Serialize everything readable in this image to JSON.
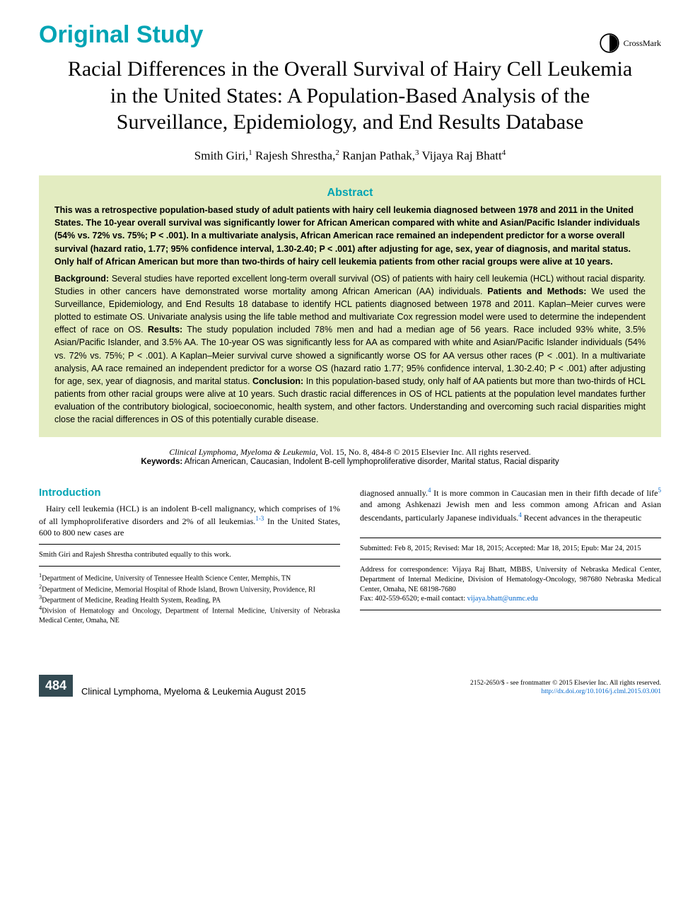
{
  "header": {
    "section_type": "Original Study",
    "crossmark_label": "CrossMark"
  },
  "article": {
    "title": "Racial Differences in the Overall Survival of Hairy Cell Leukemia in the United States: A Population-Based Analysis of the Surveillance, Epidemiology, and End Results Database",
    "authors_html": "Smith Giri,<sup>1</sup> Rajesh Shrestha,<sup>2</sup> Ranjan Pathak,<sup>3</sup> Vijaya Raj Bhatt<sup>4</sup>"
  },
  "abstract": {
    "heading": "Abstract",
    "bold_summary": "This was a retrospective population-based study of adult patients with hairy cell leukemia diagnosed between 1978 and 2011 in the United States. The 10-year overall survival was significantly lower for African American compared with white and Asian/Pacific Islander individuals (54% vs. 72% vs. 75%; P < .001). In a multivariate analysis, African American race remained an independent predictor for a worse overall survival (hazard ratio, 1.77; 95% confidence interval, 1.30-2.40; P < .001) after adjusting for age, sex, year of diagnosis, and marital status. Only half of African American but more than two-thirds of hairy cell leukemia patients from other racial groups were alive at 10 years.",
    "structured": [
      {
        "label": "Background:",
        "text": " Several studies have reported excellent long-term overall survival (OS) of patients with hairy cell leukemia (HCL) without racial disparity. Studies in other cancers have demonstrated worse mortality among African American (AA) individuals. "
      },
      {
        "label": "Patients and Methods:",
        "text": " We used the Surveillance, Epidemiology, and End Results 18 database to identify HCL patients diagnosed between 1978 and 2011. Kaplan–Meier curves were plotted to estimate OS. Univariate analysis using the life table method and multivariate Cox regression model were used to determine the independent effect of race on OS. "
      },
      {
        "label": "Results:",
        "text": " The study population included 78% men and had a median age of 56 years. Race included 93% white, 3.5% Asian/Pacific Islander, and 3.5% AA. The 10-year OS was significantly less for AA as compared with white and Asian/Pacific Islander individuals (54% vs. 72% vs. 75%; P < .001). A Kaplan–Meier survival curve showed a significantly worse OS for AA versus other races (P < .001). In a multivariate analysis, AA race remained an independent predictor for a worse OS (hazard ratio 1.77; 95% confidence interval, 1.30-2.40; P < .001) after adjusting for age, sex, year of diagnosis, and marital status. "
      },
      {
        "label": "Conclusion:",
        "text": " In this population-based study, only half of AA patients but more than two-thirds of HCL patients from other racial groups were alive at 10 years. Such drastic racial differences in OS of HCL patients at the population level mandates further evaluation of the contributory biological, socioeconomic, health system, and other factors. Understanding and overcoming such racial disparities might close the racial differences in OS of this potentially curable disease."
      }
    ]
  },
  "citation": {
    "journal": "Clinical Lymphoma, Myeloma & Leukemia,",
    "rest": " Vol. 15, No. 8, 484-8 © 2015 Elsevier Inc. All rights reserved.",
    "keywords_label": "Keywords:",
    "keywords": " African American, Caucasian, Indolent B-cell lymphoproliferative disorder, Marital status, Racial disparity"
  },
  "body": {
    "intro_heading": "Introduction",
    "col_left": "Hairy cell leukemia (HCL) is an indolent B-cell malignancy, which comprises of 1% of all lymphoproliferative disorders and 2% of all leukemias.<sup class='ref'>1-3</sup> In the United States, 600 to 800 new cases are",
    "col_right": "diagnosed annually.<sup class='ref'>4</sup> It is more common in Caucasian men in their fifth decade of life<sup class='ref'>5</sup> and among Ashkenazi Jewish men and less common among African and Asian descendants, particularly Japanese individuals.<sup class='ref'>4</sup> Recent advances in the therapeutic"
  },
  "footnotes": {
    "contrib": "Smith Giri and Rajesh Shrestha contributed equally to this work.",
    "affils": [
      "1Department of Medicine, University of Tennessee Health Science Center, Memphis, TN",
      "2Department of Medicine, Memorial Hospital of Rhode Island, Brown University, Providence, RI",
      "3Department of Medicine, Reading Health System, Reading, PA",
      "4Division of Hematology and Oncology, Department of Internal Medicine, University of Nebraska Medical Center, Omaha, NE"
    ],
    "dates": "Submitted: Feb 8, 2015; Revised: Mar 18, 2015; Accepted: Mar 18, 2015; Epub: Mar 24, 2015",
    "corresp": "Address for correspondence: Vijaya Raj Bhatt, MBBS, University of Nebraska Medical Center, Department of Internal Medicine, Division of Hematology-Oncology, 987680 Nebraska Medical Center, Omaha, NE 68198-7680",
    "fax": "Fax: 402-559-6520; e-mail contact: ",
    "email": "vijaya.bhatt@unmc.edu"
  },
  "footer": {
    "page_num": "484",
    "journal_line": "Clinical Lymphoma, Myeloma & Leukemia   August 2015",
    "copyright": "2152-2650/$ - see frontmatter © 2015 Elsevier Inc. All rights reserved.",
    "doi": "http://dx.doi.org/10.1016/j.clml.2015.03.001"
  },
  "colors": {
    "accent": "#00a4b4",
    "abstract_bg": "#e3ecc1",
    "pagenum_bg": "#334a52",
    "link": "#0066cc"
  }
}
